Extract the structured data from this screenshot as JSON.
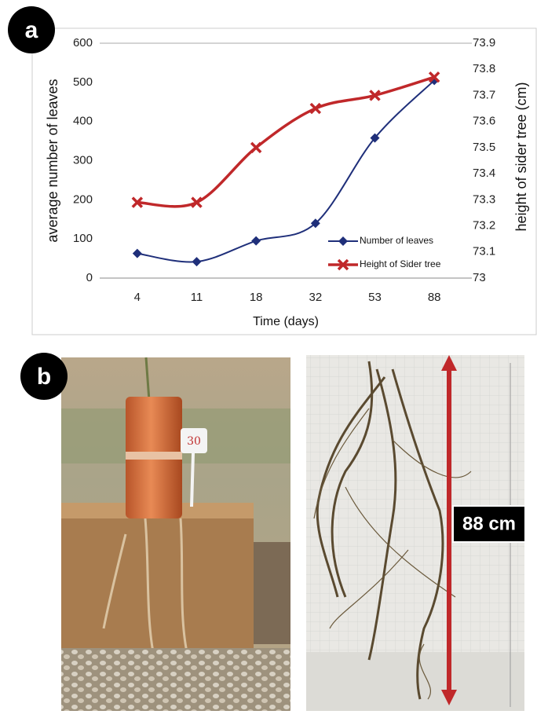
{
  "panels": {
    "a": "a",
    "b": "b"
  },
  "chart_data": {
    "type": "line",
    "xlabel": "Time (days)",
    "ylabel": "average number of leaves",
    "y2label": "height of sider tree (cm)",
    "categories": [
      "4",
      "11",
      "18",
      "32",
      "53",
      "88"
    ],
    "series": [
      {
        "name": "Number of leaves",
        "color": "#1f2f7a",
        "marker": "diamond",
        "values": [
          63,
          42,
          95,
          140,
          358,
          505
        ]
      },
      {
        "name": "Height of Sider tree",
        "color": "#c0282a",
        "marker": "x",
        "axis": "y2",
        "values": [
          73.29,
          73.29,
          73.5,
          73.65,
          73.7,
          73.77
        ]
      }
    ],
    "ylim": [
      0,
      600
    ],
    "yticks": [
      0,
      100,
      200,
      300,
      400,
      500,
      600
    ],
    "y2lim": [
      73,
      73.9
    ],
    "y2ticks": [
      73,
      73.1,
      73.2,
      73.3,
      73.4,
      73.5,
      73.6,
      73.7,
      73.8,
      73.9
    ],
    "legend": "lower right",
    "grid": false
  },
  "photo": {
    "tag": "30",
    "measure": "88 cm"
  }
}
